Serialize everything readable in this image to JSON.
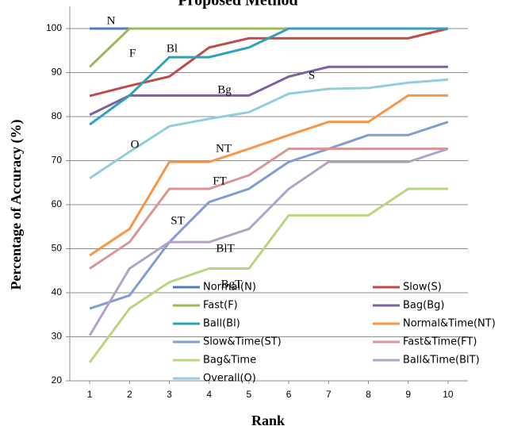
{
  "chart_data": {
    "type": "line",
    "title": "Proposed Method",
    "x_label": "Rank",
    "y_label": "Percentage of Accuracy (%)",
    "x": [
      1,
      2,
      3,
      4,
      5,
      6,
      7,
      8,
      9,
      10
    ],
    "xlim": [
      0.5,
      10.5
    ],
    "xticks": [
      1,
      2,
      3,
      4,
      5,
      6,
      7,
      8,
      9,
      10
    ],
    "ylim": [
      20,
      105
    ],
    "yticks": [
      20,
      30,
      40,
      50,
      60,
      70,
      80,
      90,
      100
    ],
    "grid": true,
    "series": [
      {
        "name": "Normal(N)",
        "color": "#4a7ebb",
        "values": [
          100,
          100,
          100,
          100,
          100,
          100,
          100,
          100,
          100,
          100
        ]
      },
      {
        "name": "Slow(S)",
        "color": "#be4b48",
        "values": [
          84.7,
          87,
          89.1,
          95.7,
          97.8,
          97.8,
          97.8,
          97.8,
          97.8,
          100
        ]
      },
      {
        "name": "Fast(F)",
        "color": "#98b954",
        "values": [
          91.3,
          100,
          100,
          100,
          100,
          100,
          100,
          100,
          100,
          100
        ]
      },
      {
        "name": "Bag(Bg)",
        "color": "#7d60a0",
        "values": [
          80.4,
          84.8,
          84.8,
          84.8,
          84.8,
          89.1,
          91.3,
          91.3,
          91.3,
          91.3
        ]
      },
      {
        "name": "Ball(Bl)",
        "color": "#31a0bd",
        "values": [
          78.2,
          84.8,
          93.5,
          93.5,
          95.7,
          100,
          100,
          100,
          100,
          100
        ]
      },
      {
        "name": "Normal&Time(NT)",
        "color": "#f79646",
        "values": [
          48.5,
          54.5,
          69.7,
          69.7,
          72.7,
          75.8,
          78.8,
          78.8,
          84.8,
          84.8
        ]
      },
      {
        "name": "Slow&Time(ST)",
        "color": "#7f9ed2",
        "values": [
          36.4,
          39.4,
          51.5,
          60.6,
          63.6,
          69.7,
          72.7,
          75.8,
          75.8,
          78.8
        ]
      },
      {
        "name": "Fast&Time(FT)",
        "color": "#d99694",
        "values": [
          45.5,
          51.5,
          63.6,
          63.6,
          66.7,
          72.7,
          72.7,
          72.7,
          72.7,
          72.7
        ]
      },
      {
        "name": "Bag&Time",
        "color": "#b8d57f",
        "values": [
          24.2,
          36.4,
          42.4,
          45.5,
          45.5,
          57.6,
          57.6,
          57.6,
          63.6,
          63.6
        ]
      },
      {
        "name": "Ball&Time(BlT)",
        "color": "#b3a2c7",
        "values": [
          30.3,
          45.5,
          51.5,
          51.5,
          54.5,
          63.6,
          69.7,
          69.7,
          69.7,
          72.7
        ]
      },
      {
        "name": "Overall(O)",
        "color": "#93cddd",
        "values": [
          66,
          72,
          77.8,
          79.5,
          81,
          85.2,
          86.3,
          86.5,
          87.7,
          88.4
        ]
      }
    ],
    "annotations": [
      "N",
      "F",
      "Bl",
      "S",
      "Bg",
      "O",
      "NT",
      "FT",
      "ST",
      "BlT",
      "BgT"
    ]
  }
}
